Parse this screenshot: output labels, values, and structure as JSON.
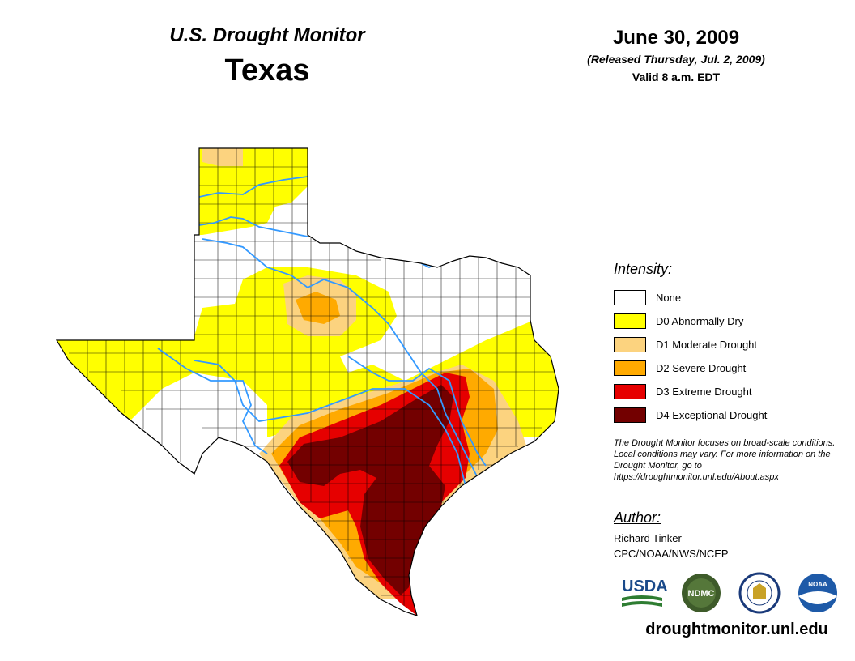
{
  "header": {
    "monitor_title": "U.S. Drought Monitor",
    "state": "Texas",
    "date": "June 30, 2009",
    "release": "(Released Thursday, Jul. 2, 2009)",
    "valid": "Valid 8 a.m. EDT"
  },
  "legend": {
    "title": "Intensity:",
    "items": [
      {
        "label": "None",
        "color": "#ffffff"
      },
      {
        "label": "D0 Abnormally Dry",
        "color": "#ffff00"
      },
      {
        "label": "D1 Moderate Drought",
        "color": "#fcd37f"
      },
      {
        "label": "D2 Severe Drought",
        "color": "#ffaa00"
      },
      {
        "label": "D3 Extreme Drought",
        "color": "#e60000"
      },
      {
        "label": "D4 Exceptional Drought",
        "color": "#730000"
      }
    ]
  },
  "note": "The Drought Monitor focuses on broad-scale conditions. Local conditions may vary. For more information on the Drought Monitor, go to https://droughtmonitor.unl.edu/About.aspx",
  "author": {
    "title": "Author:",
    "name": "Richard Tinker",
    "org": "CPC/NOAA/NWS/NCEP"
  },
  "logos": {
    "usda": "USDA",
    "ndmc": "NDMC",
    "noaa": "NOAA"
  },
  "url": "droughtmonitor.unl.edu",
  "colors": {
    "river": "#3399ff",
    "county_line": "#000000"
  }
}
